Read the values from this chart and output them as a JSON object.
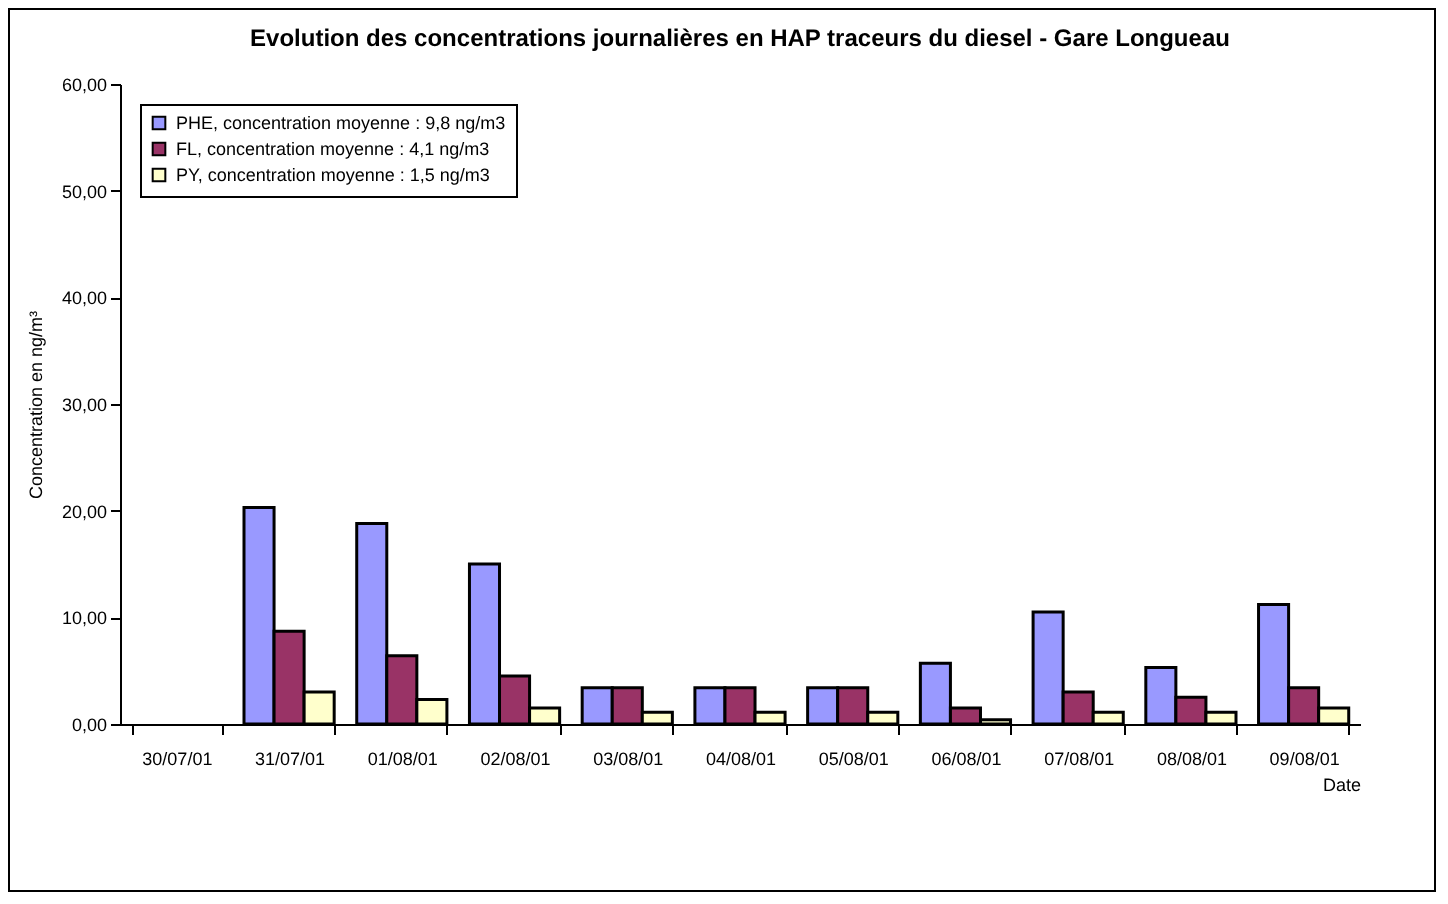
{
  "chart_data": {
    "type": "bar",
    "title": "Evolution des concentrations journalières en HAP traceurs du diesel - Gare Longueau",
    "xlabel": "Date",
    "ylabel": "Concentration en ng/m³",
    "categories": [
      "30/07/01",
      "31/07/01",
      "01/08/01",
      "02/08/01",
      "03/08/01",
      "04/08/01",
      "05/08/01",
      "06/08/01",
      "07/08/01",
      "08/08/01",
      "09/08/01"
    ],
    "series": [
      {
        "name": "PHE, concentration moyenne : 9,8 ng/m3",
        "color": "#9999ff",
        "values": [
          null,
          20.3,
          18.8,
          15.0,
          3.4,
          3.4,
          3.4,
          5.7,
          10.5,
          5.3,
          11.2
        ]
      },
      {
        "name": "FL, concentration moyenne : 4,1 ng/m3",
        "color": "#993366",
        "values": [
          null,
          8.7,
          6.4,
          4.5,
          3.4,
          3.4,
          3.4,
          1.5,
          3.0,
          2.5,
          3.4
        ]
      },
      {
        "name": "PY, concentration moyenne : 1,5 ng/m3",
        "color": "#ffffcc",
        "values": [
          null,
          3.0,
          2.3,
          1.5,
          1.1,
          1.1,
          1.1,
          0.4,
          1.1,
          1.1,
          1.5
        ]
      }
    ],
    "ylim": [
      0,
      60
    ],
    "yticks": [
      {
        "value": 0,
        "label": "0,00"
      },
      {
        "value": 10,
        "label": "10,00"
      },
      {
        "value": 20,
        "label": "20,00"
      },
      {
        "value": 30,
        "label": "30,00"
      },
      {
        "value": 40,
        "label": "40,00"
      },
      {
        "value": 50,
        "label": "50,00"
      },
      {
        "value": 60,
        "label": "60,00"
      }
    ],
    "grid": false,
    "legend": "top left"
  }
}
